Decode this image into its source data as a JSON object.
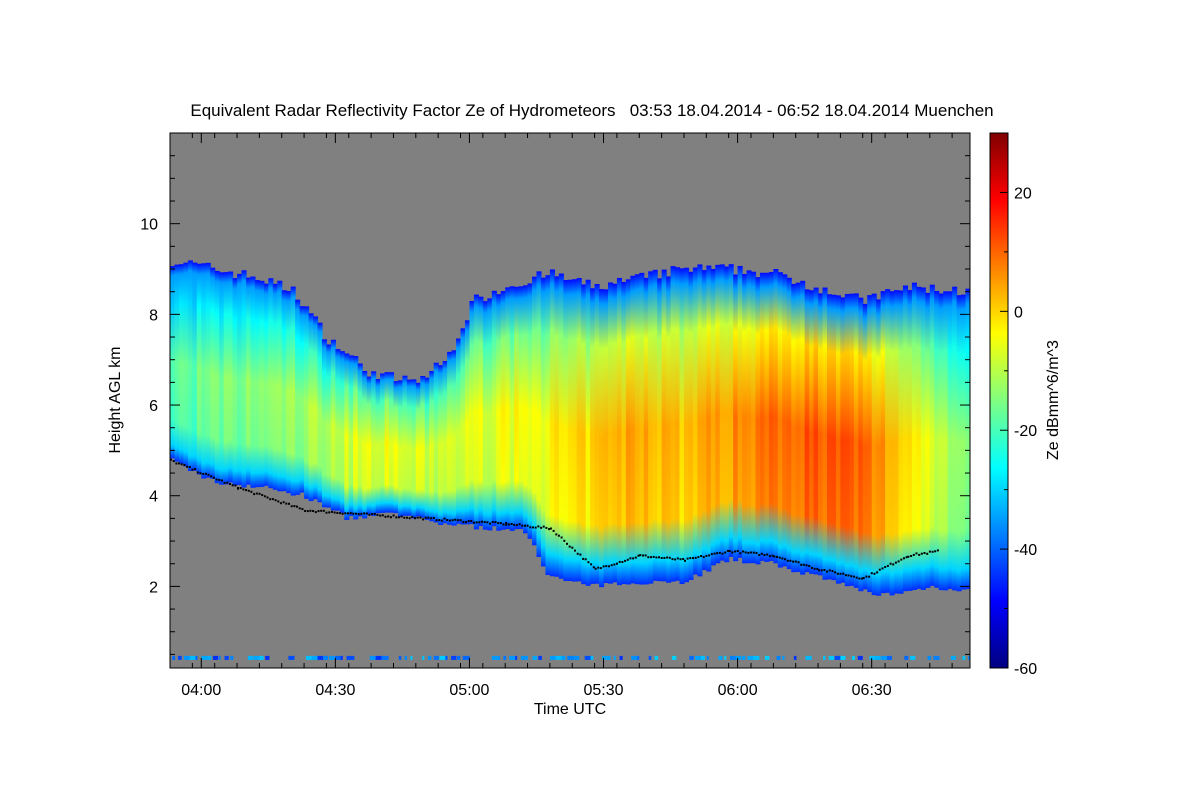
{
  "chart_data": {
    "type": "heatmap",
    "title": "Equivalent Radar Reflectivity Factor Ze of Hydrometeors",
    "time_range": "03:53 18.04.2014 - 06:52 18.04.2014",
    "location": "Muenchen",
    "xlabel": "Time UTC",
    "ylabel": "Height AGL km",
    "x_ticks": [
      "04:00",
      "04:30",
      "05:00",
      "05:30",
      "06:00",
      "06:30"
    ],
    "x_tick_minutes": [
      7,
      37,
      67,
      97,
      127,
      157
    ],
    "xlim_minutes": [
      0,
      179
    ],
    "y_ticks": [
      2,
      4,
      6,
      8,
      10
    ],
    "ylim": [
      0.2,
      12.0
    ],
    "colorbar": {
      "label": "Ze dBmm^6/m^3",
      "ticks": [
        20,
        0,
        -20,
        -40,
        -60
      ],
      "range": [
        -60,
        30
      ],
      "colormap": [
        "#000080",
        "#0000ff",
        "#0080ff",
        "#00ffff",
        "#80ff80",
        "#ffff00",
        "#ff8000",
        "#ff0000",
        "#800000"
      ]
    },
    "no_data_color": "#808080",
    "echo_top_km": [
      [
        0,
        9.2
      ],
      [
        10,
        9.0
      ],
      [
        20,
        8.8
      ],
      [
        28,
        8.5
      ],
      [
        35,
        7.5
      ],
      [
        45,
        6.7
      ],
      [
        55,
        6.5
      ],
      [
        62,
        7.0
      ],
      [
        68,
        8.3
      ],
      [
        75,
        8.6
      ],
      [
        85,
        8.9
      ],
      [
        95,
        8.6
      ],
      [
        105,
        8.8
      ],
      [
        115,
        9.0
      ],
      [
        125,
        9.0
      ],
      [
        135,
        8.9
      ],
      [
        145,
        8.6
      ],
      [
        155,
        8.3
      ],
      [
        165,
        8.6
      ],
      [
        179,
        8.5
      ]
    ],
    "echo_base_km": [
      [
        0,
        4.8
      ],
      [
        10,
        4.3
      ],
      [
        20,
        4.2
      ],
      [
        30,
        4.0
      ],
      [
        40,
        3.5
      ],
      [
        50,
        3.6
      ],
      [
        60,
        3.4
      ],
      [
        70,
        3.3
      ],
      [
        80,
        3.2
      ],
      [
        85,
        2.2
      ],
      [
        95,
        2.0
      ],
      [
        105,
        2.1
      ],
      [
        115,
        2.1
      ],
      [
        125,
        2.6
      ],
      [
        135,
        2.5
      ],
      [
        145,
        2.2
      ],
      [
        155,
        1.9
      ],
      [
        162,
        1.8
      ],
      [
        170,
        2.0
      ],
      [
        179,
        1.9
      ]
    ],
    "core_reflectivity_dBZ": [
      [
        0,
        -18
      ],
      [
        15,
        -15
      ],
      [
        30,
        -12
      ],
      [
        45,
        -5
      ],
      [
        60,
        -8
      ],
      [
        75,
        -5
      ],
      [
        90,
        -2
      ],
      [
        105,
        5
      ],
      [
        115,
        2
      ],
      [
        125,
        6
      ],
      [
        135,
        10
      ],
      [
        145,
        12
      ],
      [
        155,
        10
      ],
      [
        165,
        0
      ],
      [
        179,
        -15
      ]
    ],
    "melting_layer_km": [
      [
        0,
        4.8
      ],
      [
        15,
        4.2
      ],
      [
        30,
        3.7
      ],
      [
        45,
        3.6
      ],
      [
        60,
        3.5
      ],
      [
        75,
        3.4
      ],
      [
        85,
        3.3
      ],
      [
        95,
        2.4
      ],
      [
        105,
        2.7
      ],
      [
        115,
        2.6
      ],
      [
        125,
        2.8
      ],
      [
        135,
        2.7
      ],
      [
        145,
        2.4
      ],
      [
        155,
        2.2
      ],
      [
        165,
        2.7
      ],
      [
        172,
        2.8
      ]
    ],
    "ground_clutter_km": 0.4
  }
}
